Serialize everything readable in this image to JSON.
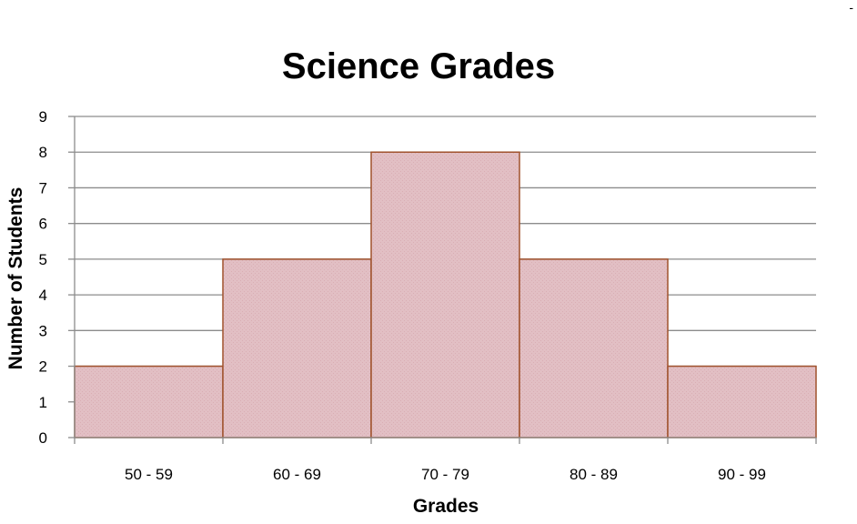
{
  "chart_data": {
    "type": "bar",
    "title": "Science Grades",
    "xlabel": "Grades",
    "ylabel": "Number of Students",
    "categories": [
      "50 - 59",
      "60 - 69",
      "70 - 79",
      "80 - 89",
      "90 - 99"
    ],
    "values": [
      2,
      5,
      8,
      5,
      2
    ],
    "ylim": [
      0,
      9
    ],
    "yticks": [
      "0",
      "1",
      "2",
      "3",
      "4",
      "5",
      "6",
      "7",
      "8",
      "9"
    ],
    "grid": true,
    "legend": "none",
    "bar_fill": "#e2bfc4",
    "bar_stroke": "#a0522d",
    "histogram": true
  },
  "corner_mark": "-"
}
